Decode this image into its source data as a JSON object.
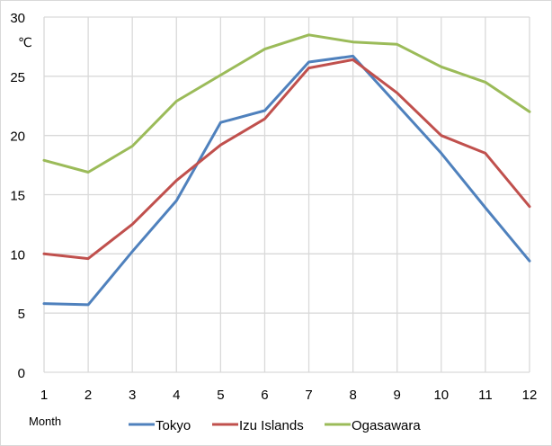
{
  "chart_data": {
    "type": "line",
    "title": "",
    "xlabel": "Month",
    "ylabel": "℃",
    "x": [
      1,
      2,
      3,
      4,
      5,
      6,
      7,
      8,
      9,
      10,
      11,
      12
    ],
    "ylim": [
      0,
      30
    ],
    "yticks": [
      0,
      5,
      10,
      15,
      20,
      25,
      30
    ],
    "grid": true,
    "legend_position": "bottom",
    "series": [
      {
        "name": "Tokyo",
        "color": "#4F81BD",
        "values": [
          5.8,
          5.7,
          10.2,
          14.5,
          21.1,
          22.1,
          26.2,
          26.7,
          22.6,
          18.5,
          13.9,
          9.4
        ]
      },
      {
        "name": "Izu Islands",
        "color": "#C0504D",
        "values": [
          10.0,
          9.6,
          12.5,
          16.2,
          19.2,
          21.4,
          25.7,
          26.4,
          23.6,
          20.0,
          18.5,
          14.0
        ]
      },
      {
        "name": "Ogasawara",
        "color": "#9BBB59",
        "values": [
          17.9,
          16.9,
          19.1,
          22.9,
          25.1,
          27.3,
          28.5,
          27.9,
          27.7,
          25.8,
          24.5,
          22.0
        ]
      }
    ]
  },
  "axis": {
    "unit_label": "℃",
    "x_title": "Month"
  },
  "legend": [
    {
      "label": "Tokyo",
      "color": "#4F81BD"
    },
    {
      "label": "Izu Islands",
      "color": "#C0504D"
    },
    {
      "label": "Ogasawara",
      "color": "#9BBB59"
    }
  ]
}
